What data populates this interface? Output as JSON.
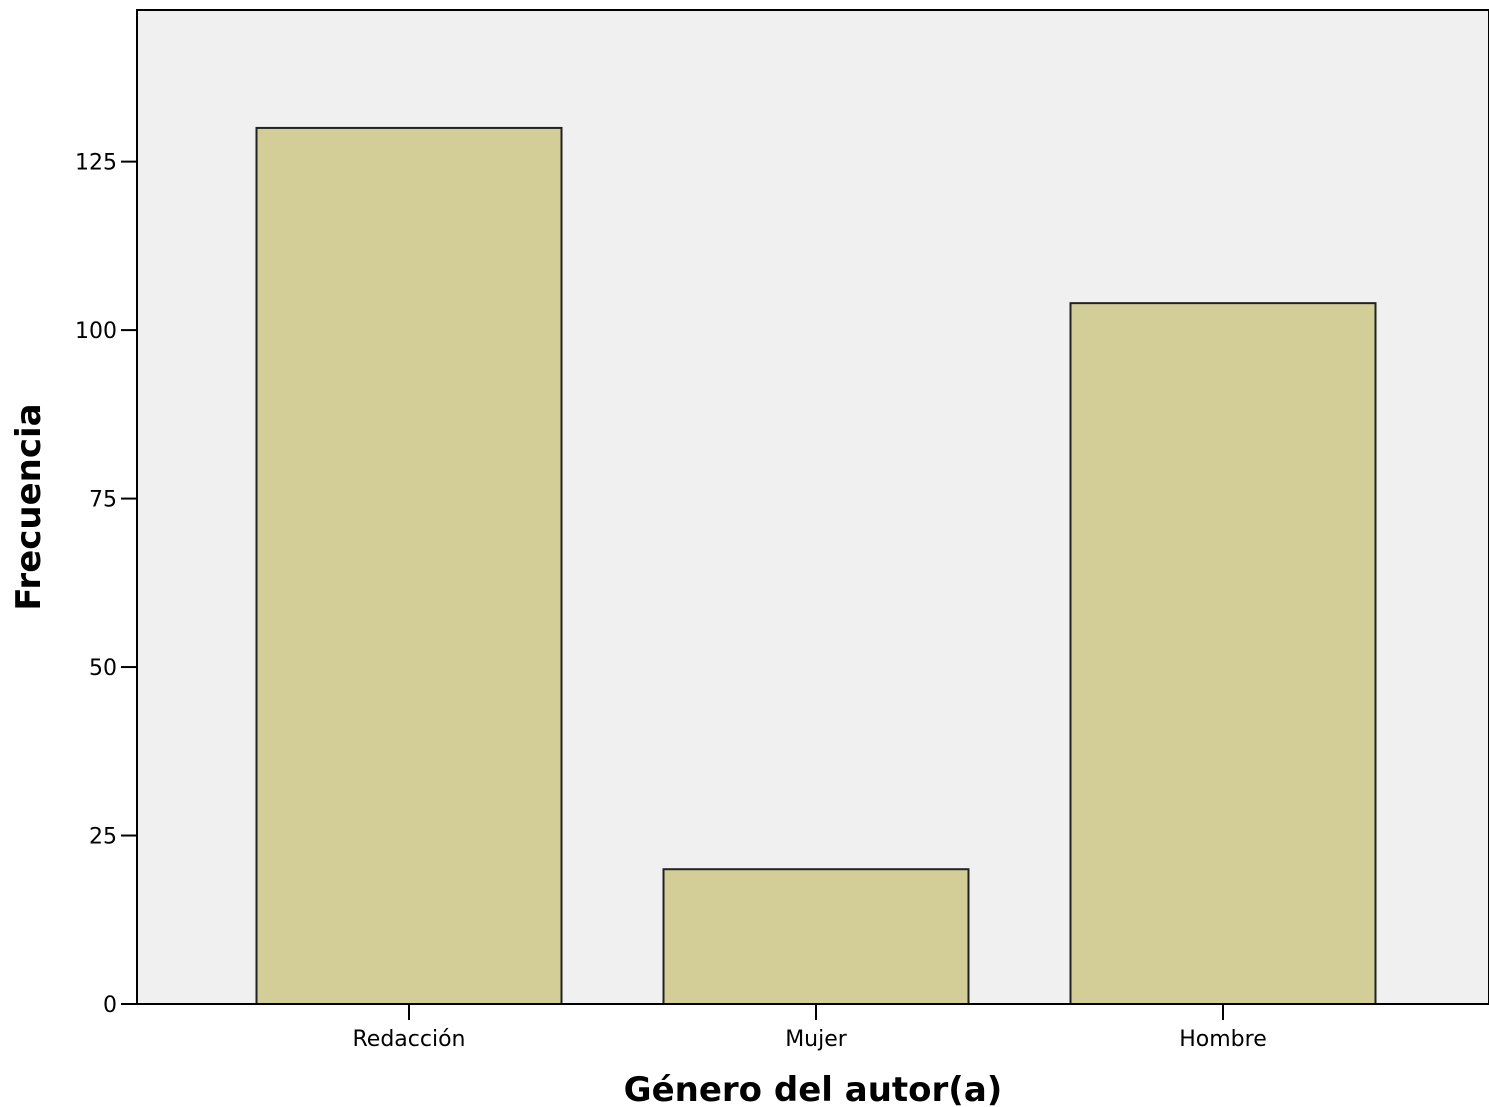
{
  "chart_data": {
    "type": "bar",
    "title": "",
    "xlabel": "Género del autor(a)",
    "ylabel": "Frecuencia",
    "categories": [
      "Redacción",
      "Mujer",
      "Hombre"
    ],
    "values": [
      130,
      20,
      104
    ],
    "ylim": [
      0,
      147.5
    ],
    "yticks": [
      0,
      25,
      50,
      75,
      100,
      125
    ],
    "grid": false,
    "colors": {
      "bar_fill": "#d3ce97",
      "bar_stroke": "#222222",
      "plot_background": "#f0f0f0",
      "axis": "#000000"
    }
  }
}
